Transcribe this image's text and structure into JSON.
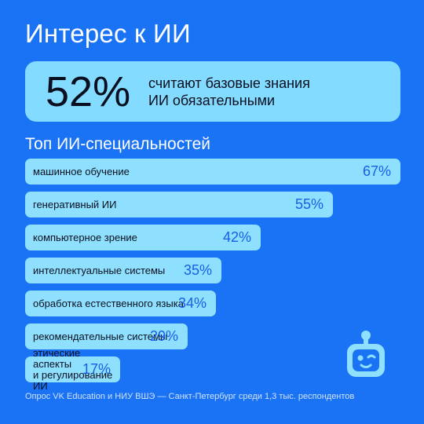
{
  "title": "Интерес к ИИ",
  "highlight": {
    "value": "52%",
    "text": "считают базовые знания\nИИ обязательными"
  },
  "subtitle": "Топ ИИ-специальностей",
  "chart_data": {
    "type": "bar",
    "orientation": "horizontal",
    "title": "Топ ИИ-специальностей",
    "categories": [
      "машинное обучение",
      "генеративный ИИ",
      "компьютерное зрение",
      "интеллектуальные системы",
      "обработка естественного языка",
      "рекомендательные системы",
      "этические аспекты\nи регулирование ИИ"
    ],
    "values": [
      67,
      55,
      42,
      35,
      34,
      29,
      17
    ],
    "value_labels": [
      "67%",
      "55%",
      "42%",
      "35%",
      "34%",
      "29%",
      "17%"
    ],
    "unit": "%",
    "grid": false
  },
  "footer": "Опрос VK Education и НИУ ВШЭ — Санкт-Петербург среди 1,3 тыс. респондентов",
  "colors": {
    "background": "#1a73f5",
    "highlight_box": "#83dbff",
    "bar": "#8fe0ff",
    "bar_value": "#1a5de8",
    "text_dark": "#0a0f1f",
    "robot": "#8fe0ff"
  },
  "icons": {
    "mascot": "robot-icon"
  }
}
